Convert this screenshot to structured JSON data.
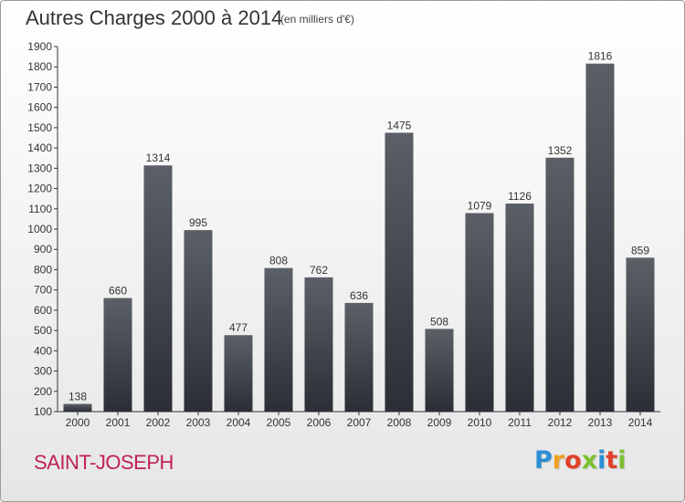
{
  "header": {
    "title": "Autres Charges 2000 à 2014",
    "unit": "(en milliers d'€)"
  },
  "footer": {
    "commune": "SAINT-JOSEPH",
    "logo_text": "Proxiti",
    "logo_colors": [
      "#2a8fd6",
      "#f0a020",
      "#e0402a",
      "#7cc030",
      "#2a8fd6",
      "#e0402a",
      "#7cc030"
    ]
  },
  "colors": {
    "bar_top": "#5b6067",
    "bar_bottom": "#2b2f35",
    "axis": "#333333",
    "grid": "#d0d0d0",
    "title": "#333333",
    "commune": "#c0205a"
  },
  "chart_data": {
    "type": "bar",
    "title": "Autres Charges 2000 à 2014",
    "subtitle": "(en milliers d'€)",
    "categories": [
      "2000",
      "2001",
      "2002",
      "2003",
      "2004",
      "2005",
      "2006",
      "2007",
      "2008",
      "2009",
      "2010",
      "2011",
      "2012",
      "2013",
      "2014"
    ],
    "values": [
      138,
      660,
      1314,
      995,
      477,
      808,
      762,
      636,
      1475,
      508,
      1079,
      1126,
      1352,
      1816,
      859
    ],
    "ylim": [
      100,
      1900
    ],
    "yticks": [
      100,
      200,
      300,
      400,
      500,
      600,
      700,
      800,
      900,
      1000,
      1100,
      1200,
      1300,
      1400,
      1500,
      1600,
      1700,
      1800,
      1900
    ],
    "data_labels": true,
    "grid": false,
    "legend": "none"
  }
}
